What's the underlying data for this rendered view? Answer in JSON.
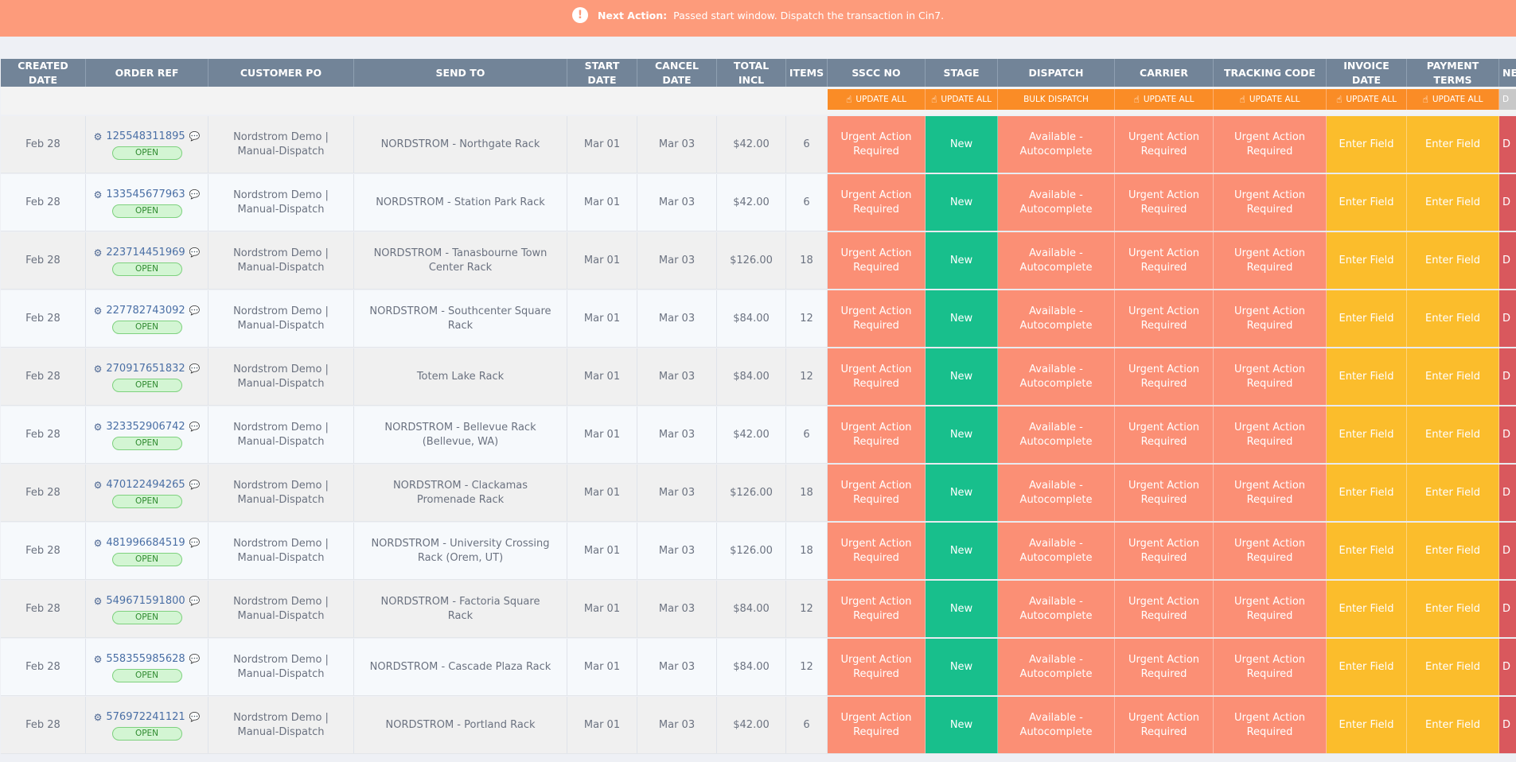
{
  "banner": {
    "label": "Next Action:",
    "message": "Passed start window. Dispatch the transaction in Cin7."
  },
  "columns": {
    "created": "CREATED DATE",
    "order_ref": "ORDER REF",
    "customer_po": "CUSTOMER PO",
    "send_to": "SEND TO",
    "start_date": "START DATE",
    "cancel_date": "CANCEL DATE",
    "total": "TOTAL INCL",
    "items": "ITEMS",
    "sscc": "SSCC NO",
    "stage": "STAGE",
    "dispatch": "DISPATCH",
    "carrier": "CARRIER",
    "tracking": "TRACKING CODE",
    "invoice_date": "INVOICE DATE",
    "payment_terms": "PAYMENT TERMS",
    "next": "NE"
  },
  "tools": {
    "update_all": "UPDATE ALL",
    "bulk_dispatch": "BULK DISPATCH",
    "cut": "D"
  },
  "status": {
    "urgent": "Urgent Action Required",
    "new": "New",
    "available": "Available - Autocomplete",
    "enter": "Enter Field",
    "cut": "D",
    "open": "OPEN"
  },
  "colors": {
    "banner": "#fd9b7b",
    "header": "#728498",
    "urgent": "#fb8f75",
    "new": "#18bf8c",
    "enter": "#fbbd2c",
    "tool": "#fa8c26"
  },
  "rows": [
    {
      "created": "Feb 28",
      "order": "125548311895",
      "po": "Nordstrom Demo | Manual-Dispatch",
      "send_to": "NORDSTROM - Northgate Rack",
      "start": "Mar 01",
      "cancel": "Mar 03",
      "total": "$42.00",
      "items": "6"
    },
    {
      "created": "Feb 28",
      "order": "133545677963",
      "po": "Nordstrom Demo | Manual-Dispatch",
      "send_to": "NORDSTROM - Station Park Rack",
      "start": "Mar 01",
      "cancel": "Mar 03",
      "total": "$42.00",
      "items": "6"
    },
    {
      "created": "Feb 28",
      "order": "223714451969",
      "po": "Nordstrom Demo | Manual-Dispatch",
      "send_to": "NORDSTROM - Tanasbourne Town Center Rack",
      "start": "Mar 01",
      "cancel": "Mar 03",
      "total": "$126.00",
      "items": "18"
    },
    {
      "created": "Feb 28",
      "order": "227782743092",
      "po": "Nordstrom Demo | Manual-Dispatch",
      "send_to": "NORDSTROM - Southcenter Square Rack",
      "start": "Mar 01",
      "cancel": "Mar 03",
      "total": "$84.00",
      "items": "12"
    },
    {
      "created": "Feb 28",
      "order": "270917651832",
      "po": "Nordstrom Demo | Manual-Dispatch",
      "send_to": "Totem Lake Rack",
      "start": "Mar 01",
      "cancel": "Mar 03",
      "total": "$84.00",
      "items": "12"
    },
    {
      "created": "Feb 28",
      "order": "323352906742",
      "po": "Nordstrom Demo | Manual-Dispatch",
      "send_to": "NORDSTROM - Bellevue Rack (Bellevue, WA)",
      "start": "Mar 01",
      "cancel": "Mar 03",
      "total": "$42.00",
      "items": "6"
    },
    {
      "created": "Feb 28",
      "order": "470122494265",
      "po": "Nordstrom Demo | Manual-Dispatch",
      "send_to": "NORDSTROM - Clackamas Promenade Rack",
      "start": "Mar 01",
      "cancel": "Mar 03",
      "total": "$126.00",
      "items": "18"
    },
    {
      "created": "Feb 28",
      "order": "481996684519",
      "po": "Nordstrom Demo | Manual-Dispatch",
      "send_to": "NORDSTROM - University Crossing Rack (Orem, UT)",
      "start": "Mar 01",
      "cancel": "Mar 03",
      "total": "$126.00",
      "items": "18"
    },
    {
      "created": "Feb 28",
      "order": "549671591800",
      "po": "Nordstrom Demo | Manual-Dispatch",
      "send_to": "NORDSTROM - Factoria Square Rack",
      "start": "Mar 01",
      "cancel": "Mar 03",
      "total": "$84.00",
      "items": "12"
    },
    {
      "created": "Feb 28",
      "order": "558355985628",
      "po": "Nordstrom Demo | Manual-Dispatch",
      "send_to": "NORDSTROM - Cascade Plaza Rack",
      "start": "Mar 01",
      "cancel": "Mar 03",
      "total": "$84.00",
      "items": "12"
    },
    {
      "created": "Feb 28",
      "order": "576972241121",
      "po": "Nordstrom Demo | Manual-Dispatch",
      "send_to": "NORDSTROM - Portland Rack",
      "start": "Mar 01",
      "cancel": "Mar 03",
      "total": "$42.00",
      "items": "6"
    }
  ]
}
